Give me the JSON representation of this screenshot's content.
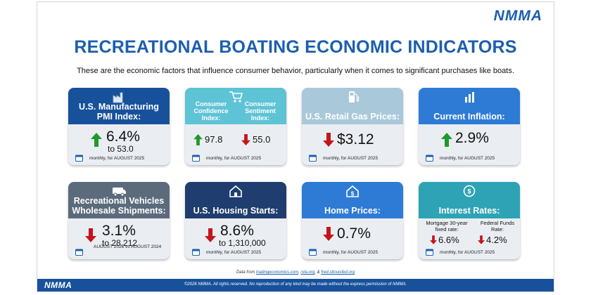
{
  "brand": {
    "logo_top": "NMMA",
    "logo_bottom": "NMMA"
  },
  "title": "RECREATIONAL BOATING ECONOMIC INDICATORS",
  "subtitle": "These are the economic factors that influence consumer behavior, particularly when it comes to significant purchases like boats.",
  "colors": {
    "navy": "#17519b",
    "teal": "#5fc3d6",
    "lightblue": "#a9c9da",
    "blue": "#2e7bd6",
    "slate": "#5c6b7c",
    "darknavy": "#1f3d6e",
    "up": "#1f9a2a",
    "down": "#c3161c"
  },
  "cards": {
    "pmi": {
      "title": "U.S. Manufacturing PMI Index:",
      "icon": "factory-icon",
      "direction": "up",
      "value": "6.4%",
      "sub": "to 53.0",
      "period": "monthly, for AUGUST 2025"
    },
    "confidence": {
      "icon": "shopping-cart-icon",
      "left_label": "Consumer Confidence Index:",
      "right_label": "Consumer Sentiment Index:",
      "left_value": "97.8",
      "left_direction": "up",
      "right_value": "55.0",
      "right_direction": "down",
      "period": "monthly, for AUGUST 2025"
    },
    "gas": {
      "title": "U.S. Retail Gas Prices:",
      "icon": "gas-pump-icon",
      "direction": "down",
      "value": "$3.12",
      "period": "monthly, for AUGUST 2025"
    },
    "inflation": {
      "title": "Current Inflation:",
      "icon": "bar-chart-icon",
      "direction": "up",
      "value": "2.9%",
      "period": "monthly, for AUGUST 2025"
    },
    "rv": {
      "title": "Recreational Vehicles Wholesale Shipments:",
      "icon": "rv-icon",
      "direction": "down",
      "value": "3.1%",
      "sub": "to 28,212",
      "period": "AUGUST 2025 vs AUGUST 2024"
    },
    "housing": {
      "title": "U.S. Housing Starts:",
      "icon": "house-icon",
      "direction": "down",
      "value": "8.6%",
      "sub": "to 1,310,000",
      "period": "monthly, for AUGUST 2025"
    },
    "home": {
      "title": "Home Prices:",
      "icon": "house-dollar-icon",
      "direction": "down",
      "value": "0.7%",
      "period": "monthly, for AUGUST 2025"
    },
    "rates": {
      "title": "Interest Rates:",
      "icon": "coin-icon",
      "left_label": "Mortgage 30-year fixed rate:",
      "right_label": "Federal Funds Rate:",
      "left_value": "6.6%",
      "left_direction": "down",
      "right_value": "4.2%",
      "right_direction": "down",
      "period": "monthly, for AUGUST 2025"
    }
  },
  "source": {
    "prefix": "Data from",
    "links": [
      "tradingeconomics.com",
      "rvia.org",
      "fred.stlouisfed.org"
    ],
    "sep1": ",",
    "sep2": ", &"
  },
  "copyright": "©2026 NMMA. All rights reserved. No reproduction of any kind may be made without the express permission of NMMA."
}
